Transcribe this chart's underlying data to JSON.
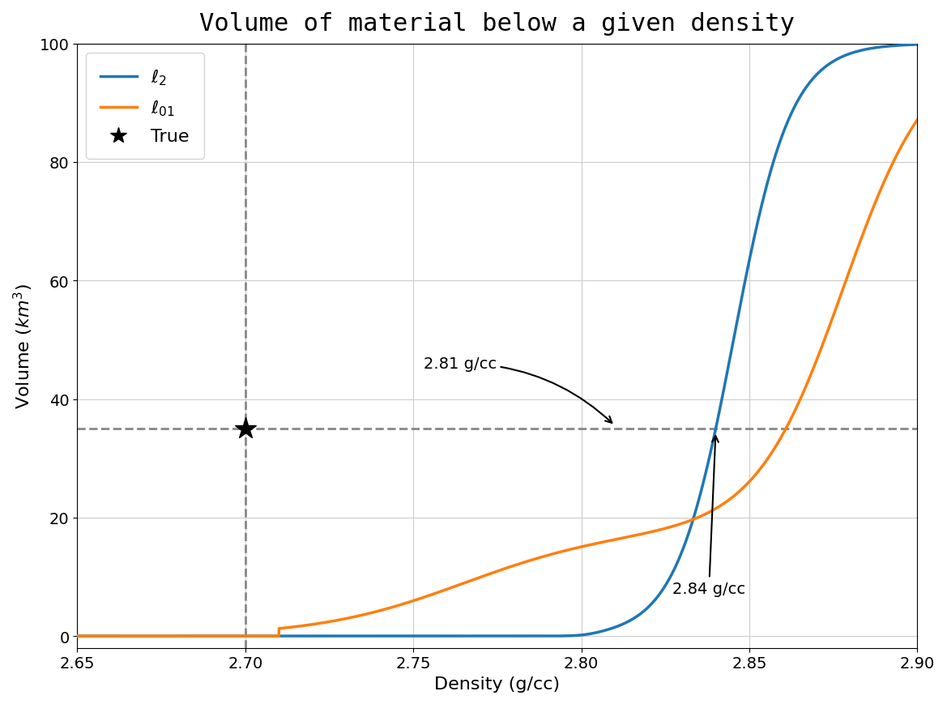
{
  "title": "Volume of material below a given density",
  "xlabel": "Density (g/cc)",
  "ylabel": "Volume $(km^3)$",
  "xlim": [
    2.65,
    2.9
  ],
  "ylim": [
    -2,
    100
  ],
  "yticks": [
    0,
    20,
    40,
    60,
    80,
    100
  ],
  "xticks": [
    2.65,
    2.7,
    2.75,
    2.8,
    2.85,
    2.9
  ],
  "hline_y": 35,
  "vline_x": 2.7,
  "star_x": 2.7,
  "star_y": 35,
  "line_blue_color": "#1f77b4",
  "line_orange_color": "#ff7f0e",
  "hline_color": "#888888",
  "vline_color": "#888888",
  "grid_color": "#cccccc",
  "background_color": "#ffffff",
  "title_fontsize": 22,
  "label_fontsize": 16,
  "tick_fontsize": 14,
  "legend_fontsize": 16,
  "annot_fontsize": 14,
  "linewidth": 2.5
}
